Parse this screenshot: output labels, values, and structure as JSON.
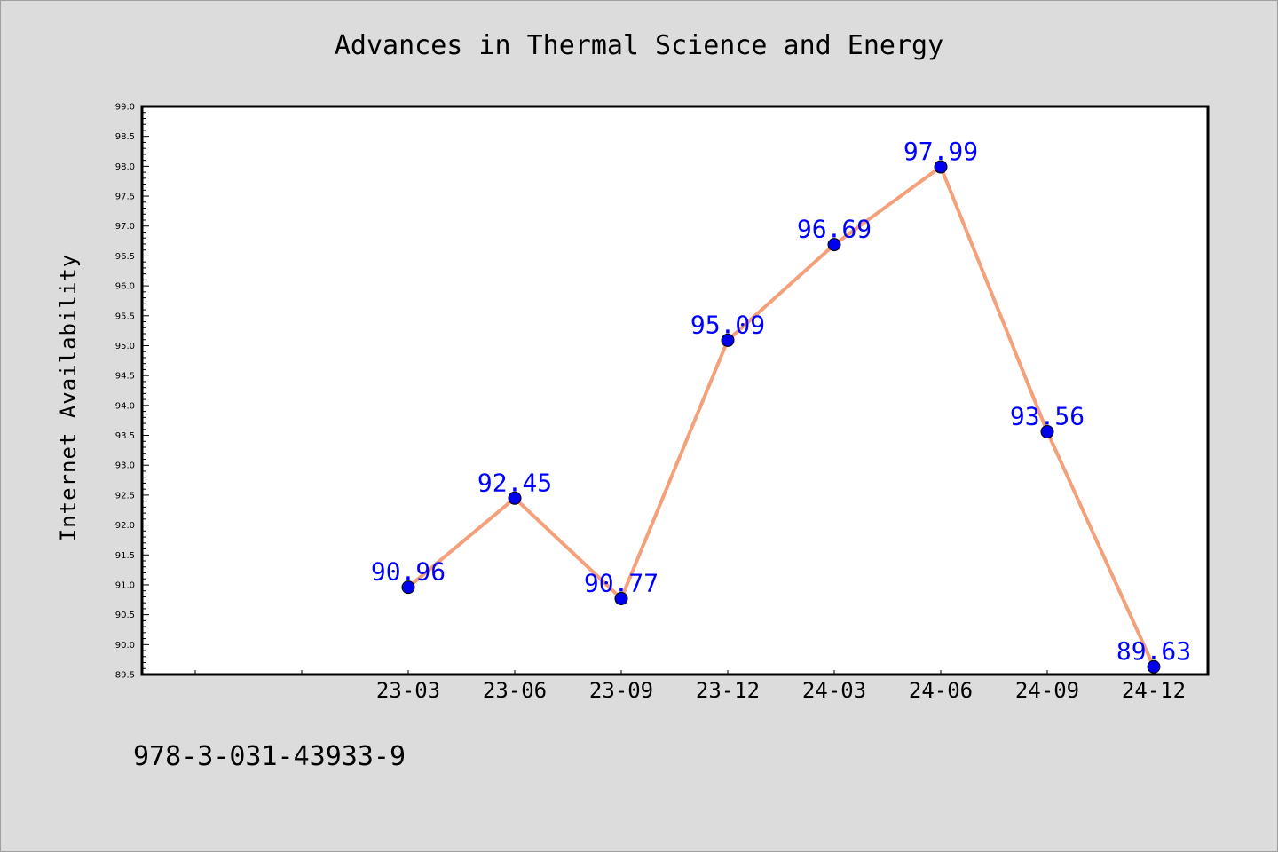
{
  "chart_data": {
    "type": "line",
    "title": "Advances in Thermal Science and Energy",
    "xlabel": "",
    "ylabel": "Internet Availability",
    "categories": [
      "23-03",
      "23-06",
      "23-09",
      "23-12",
      "24-03",
      "24-06",
      "24-09",
      "24-12"
    ],
    "series": [
      {
        "values": [
          90.96,
          92.45,
          90.77,
          95.09,
          96.69,
          97.99,
          93.56,
          89.63
        ]
      }
    ],
    "data_labels": [
      "90.96",
      "92.45",
      "90.77",
      "95.09",
      "96.69",
      "97.99",
      "93.56",
      "89.63"
    ],
    "ylim": [
      89.5,
      99.0
    ],
    "yticks": [
      "89.5",
      "90.0",
      "90.5",
      "91.0",
      "91.5",
      "92.0",
      "92.5",
      "93.0",
      "93.5",
      "94.0",
      "94.5",
      "95.0",
      "95.5",
      "96.0",
      "96.5",
      "97.0",
      "97.5",
      "98.0",
      "98.5",
      "99.0"
    ],
    "grid": false,
    "legend": "none",
    "line_color": "#f4a07a",
    "marker_color": "#0000ee",
    "label_color": "#0000ff"
  },
  "footer_text": "978-3-031-43933-9"
}
